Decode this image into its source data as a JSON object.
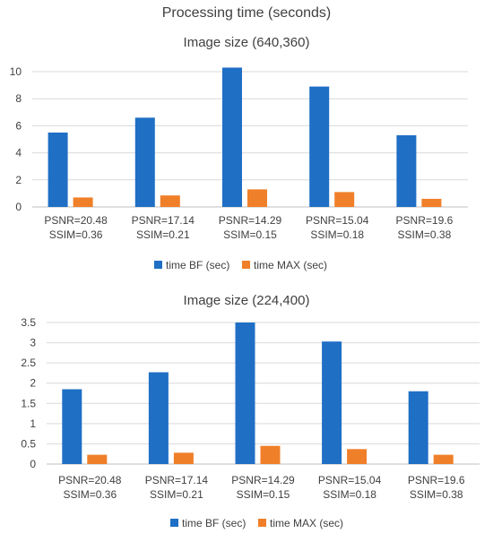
{
  "title": "Processing time (seconds)",
  "chart_data": [
    {
      "type": "bar",
      "title": "Image size (640,360)",
      "categories": [
        [
          "PSNR=20.48",
          "SSIM=0.36"
        ],
        [
          "PSNR=17.14",
          "SSIM=0.21"
        ],
        [
          "PSNR=14.29",
          "SSIM=0.15"
        ],
        [
          "PSNR=15.04",
          "SSIM=0.18"
        ],
        [
          "PSNR=19.6",
          "SSIM=0.38"
        ]
      ],
      "series": [
        {
          "name": "time BF (sec)",
          "color": "#1f6fc5",
          "values": [
            5.5,
            6.6,
            10.3,
            8.9,
            5.3
          ]
        },
        {
          "name": "time MAX (sec)",
          "color": "#f07f29",
          "values": [
            0.7,
            0.85,
            1.3,
            1.1,
            0.6
          ]
        }
      ],
      "ylim": [
        0,
        10
      ],
      "yticks": [
        0,
        2,
        4,
        6,
        8,
        10
      ],
      "ytick_labels": [
        "0",
        "2",
        "4",
        "6",
        "8",
        "10"
      ],
      "grid": true,
      "legend": "bottom"
    },
    {
      "type": "bar",
      "title": "Image size (224,400)",
      "categories": [
        [
          "PSNR=20.48",
          "SSIM=0.36"
        ],
        [
          "PSNR=17.14",
          "SSIM=0.21"
        ],
        [
          "PSNR=14.29",
          "SSIM=0.15"
        ],
        [
          "PSNR=15.04",
          "SSIM=0.18"
        ],
        [
          "PSNR=19.6",
          "SSIM=0.38"
        ]
      ],
      "series": [
        {
          "name": "time BF (sec)",
          "color": "#1f6fc5",
          "values": [
            1.85,
            2.27,
            3.5,
            3.03,
            1.8
          ]
        },
        {
          "name": "time MAX (sec)",
          "color": "#f07f29",
          "values": [
            0.23,
            0.28,
            0.45,
            0.37,
            0.23
          ]
        }
      ],
      "ylim": [
        0,
        3.5
      ],
      "yticks": [
        0,
        0.5,
        1,
        1.5,
        2,
        2.5,
        3,
        3.5
      ],
      "ytick_labels": [
        "0",
        "0.5",
        "1",
        "1.5",
        "2",
        "2.5",
        "3",
        "3.5"
      ],
      "grid": true,
      "legend": "bottom"
    }
  ]
}
